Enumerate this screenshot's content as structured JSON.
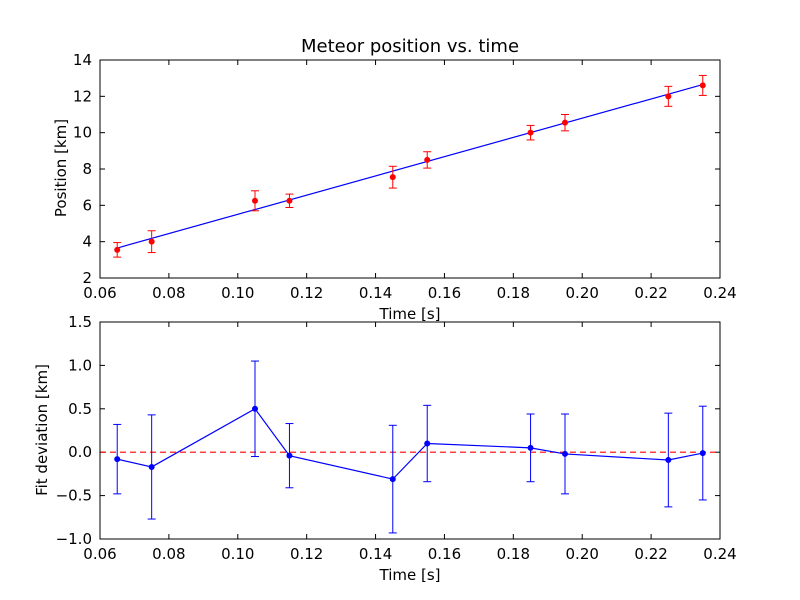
{
  "chart_data": [
    {
      "type": "scatter",
      "title": "Meteor position vs. time",
      "xlabel": "Time [s]",
      "ylabel": "Position [km]",
      "xlim": [
        0.06,
        0.24
      ],
      "ylim": [
        2,
        14
      ],
      "xticks": [
        "0.06",
        "0.08",
        "0.10",
        "0.12",
        "0.14",
        "0.16",
        "0.18",
        "0.20",
        "0.22",
        "0.24"
      ],
      "yticks": [
        "2",
        "4",
        "6",
        "8",
        "10",
        "12",
        "14"
      ],
      "grid": false,
      "points": {
        "x": [
          0.065,
          0.075,
          0.105,
          0.115,
          0.145,
          0.155,
          0.185,
          0.195,
          0.225,
          0.235
        ],
        "y": [
          3.55,
          4.0,
          6.25,
          6.25,
          7.55,
          8.5,
          10.0,
          10.55,
          12.0,
          12.6
        ],
        "yerr": [
          0.4,
          0.6,
          0.55,
          0.37,
          0.6,
          0.45,
          0.4,
          0.45,
          0.55,
          0.55
        ],
        "color": "#ff0000"
      },
      "fit_line": {
        "x": [
          0.065,
          0.235
        ],
        "y": [
          3.65,
          12.65
        ],
        "color": "#0000ff"
      }
    },
    {
      "type": "line",
      "xlabel": "Time [s]",
      "ylabel": "Fit deviation [km]",
      "xlim": [
        0.06,
        0.24
      ],
      "ylim": [
        -1.0,
        1.5
      ],
      "xticks": [
        "0.06",
        "0.08",
        "0.10",
        "0.12",
        "0.14",
        "0.16",
        "0.18",
        "0.20",
        "0.22",
        "0.24"
      ],
      "yticks": [
        "−1.0",
        "−0.5",
        "0.0",
        "0.5",
        "1.0",
        "1.5"
      ],
      "grid": false,
      "series": {
        "x": [
          0.065,
          0.075,
          0.105,
          0.115,
          0.145,
          0.155,
          0.185,
          0.195,
          0.225,
          0.235
        ],
        "y": [
          -0.08,
          -0.17,
          0.5,
          -0.04,
          -0.31,
          0.1,
          0.05,
          -0.02,
          -0.09,
          -0.01
        ],
        "yerr": [
          0.4,
          0.6,
          0.55,
          0.37,
          0.62,
          0.44,
          0.39,
          0.46,
          0.54,
          0.54
        ],
        "color": "#0000ff"
      },
      "zero_line": {
        "y": 0,
        "color": "#ff0000",
        "style": "dashed"
      }
    }
  ]
}
